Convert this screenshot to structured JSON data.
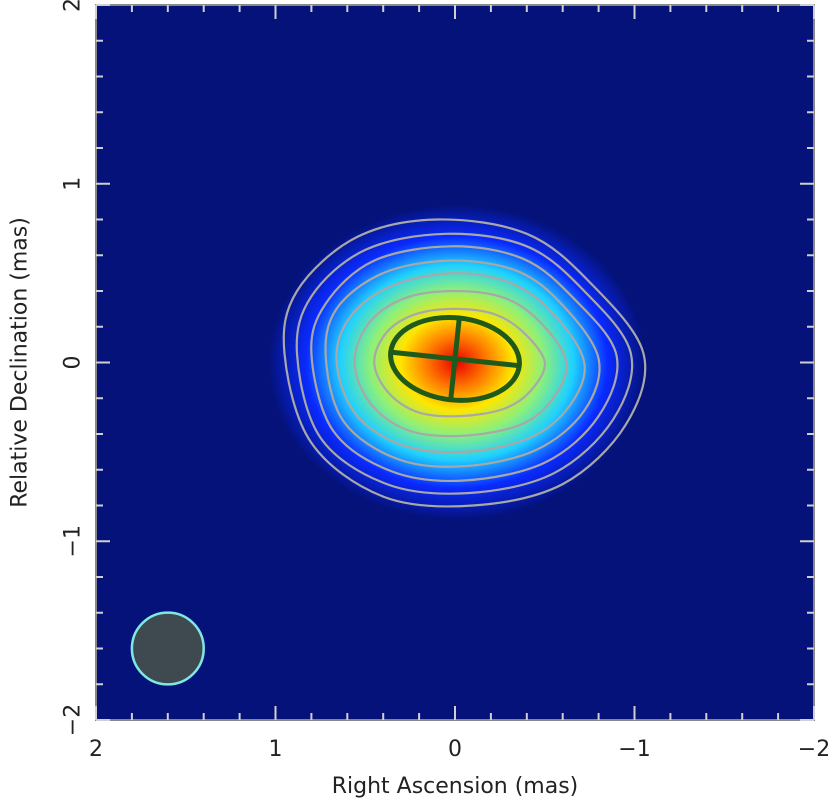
{
  "chart_data": {
    "type": "heatmap",
    "title": "",
    "xlabel": "Right Ascension  (mas)",
    "ylabel": "Relative Declination  (mas)",
    "xlim": [
      2,
      -2
    ],
    "ylim": [
      -2,
      2
    ],
    "x_ticks": [
      2,
      1,
      0,
      -1,
      -2
    ],
    "y_ticks": [
      -2,
      -1,
      0,
      1,
      2
    ],
    "x_tick_labels": [
      "2",
      "1",
      "0",
      "−1",
      "−2"
    ],
    "y_tick_labels": [
      "−2",
      "−1",
      "0",
      "1",
      "2"
    ],
    "background_color": "#04127a",
    "colormap": [
      "#04127a",
      "#0a2aff",
      "#1fd0ff",
      "#8df07a",
      "#ffe600",
      "#ff7a00",
      "#e80000"
    ],
    "contour_color": "#a8a8a8",
    "contours": [
      {
        "level": 1,
        "points": [
          [
            0.95,
            0.05
          ],
          [
            0.88,
            0.4
          ],
          [
            0.55,
            0.7
          ],
          [
            0.1,
            0.8
          ],
          [
            -0.4,
            0.72
          ],
          [
            -0.75,
            0.45
          ],
          [
            -1.05,
            0.05
          ],
          [
            -0.95,
            -0.35
          ],
          [
            -0.6,
            -0.68
          ],
          [
            -0.1,
            -0.8
          ],
          [
            0.4,
            -0.75
          ],
          [
            0.8,
            -0.45
          ]
        ]
      },
      {
        "level": 2,
        "points": [
          [
            0.88,
            0.05
          ],
          [
            0.8,
            0.37
          ],
          [
            0.5,
            0.63
          ],
          [
            0.05,
            0.72
          ],
          [
            -0.4,
            0.65
          ],
          [
            -0.72,
            0.4
          ],
          [
            -0.98,
            0.05
          ],
          [
            -0.88,
            -0.32
          ],
          [
            -0.55,
            -0.62
          ],
          [
            -0.08,
            -0.73
          ],
          [
            0.38,
            -0.68
          ],
          [
            0.75,
            -0.42
          ]
        ]
      },
      {
        "level": 3,
        "points": [
          [
            0.8,
            0.05
          ],
          [
            0.72,
            0.33
          ],
          [
            0.45,
            0.57
          ],
          [
            0.02,
            0.65
          ],
          [
            -0.38,
            0.58
          ],
          [
            -0.66,
            0.36
          ],
          [
            -0.9,
            0.04
          ],
          [
            -0.8,
            -0.3
          ],
          [
            -0.5,
            -0.56
          ],
          [
            -0.05,
            -0.66
          ],
          [
            0.35,
            -0.61
          ],
          [
            0.68,
            -0.38
          ]
        ]
      },
      {
        "level": 4,
        "points": [
          [
            0.72,
            0.03
          ],
          [
            0.66,
            0.3
          ],
          [
            0.4,
            0.5
          ],
          [
            0.02,
            0.57
          ],
          [
            -0.35,
            0.51
          ],
          [
            -0.6,
            0.32
          ],
          [
            -0.8,
            0.02
          ],
          [
            -0.72,
            -0.27
          ],
          [
            -0.45,
            -0.49
          ],
          [
            -0.05,
            -0.58
          ],
          [
            0.32,
            -0.54
          ],
          [
            0.62,
            -0.33
          ]
        ]
      },
      {
        "level": 5,
        "points": [
          [
            0.66,
            0.02
          ],
          [
            0.58,
            0.26
          ],
          [
            0.35,
            0.43
          ],
          [
            0.0,
            0.5
          ],
          [
            -0.32,
            0.44
          ],
          [
            -0.55,
            0.27
          ],
          [
            -0.72,
            0.0
          ],
          [
            -0.64,
            -0.24
          ],
          [
            -0.42,
            -0.42
          ],
          [
            -0.05,
            -0.5
          ],
          [
            0.3,
            -0.46
          ],
          [
            0.56,
            -0.28
          ]
        ]
      },
      {
        "level": 6,
        "points": [
          [
            0.56,
            0.0
          ],
          [
            0.48,
            0.22
          ],
          [
            0.28,
            0.36
          ],
          [
            0.0,
            0.4
          ],
          [
            -0.28,
            0.36
          ],
          [
            -0.48,
            0.22
          ],
          [
            -0.62,
            0.0
          ],
          [
            -0.54,
            -0.21
          ],
          [
            -0.36,
            -0.35
          ],
          [
            -0.04,
            -0.41
          ],
          [
            0.26,
            -0.38
          ],
          [
            0.47,
            -0.23
          ]
        ]
      },
      {
        "level": 7,
        "points": [
          [
            0.45,
            0.0
          ],
          [
            0.38,
            0.17
          ],
          [
            0.22,
            0.27
          ],
          [
            0.0,
            0.3
          ],
          [
            -0.22,
            0.27
          ],
          [
            -0.38,
            0.17
          ],
          [
            -0.5,
            0.0
          ],
          [
            -0.42,
            -0.16
          ],
          [
            -0.27,
            -0.26
          ],
          [
            -0.03,
            -0.3
          ],
          [
            0.2,
            -0.28
          ],
          [
            0.37,
            -0.17
          ]
        ]
      }
    ],
    "model_component": {
      "center_ra": 0.0,
      "center_dec": 0.02,
      "major_axis": 0.72,
      "minor_axis": 0.46,
      "position_angle_deg": 96,
      "color": "#1f5a1a"
    },
    "beam": {
      "center_ra": 1.6,
      "center_dec": -1.6,
      "diameter": 0.4,
      "fill": "#3f4a50",
      "edge": "#7fe8e0"
    },
    "grid": false,
    "legend": "none"
  }
}
